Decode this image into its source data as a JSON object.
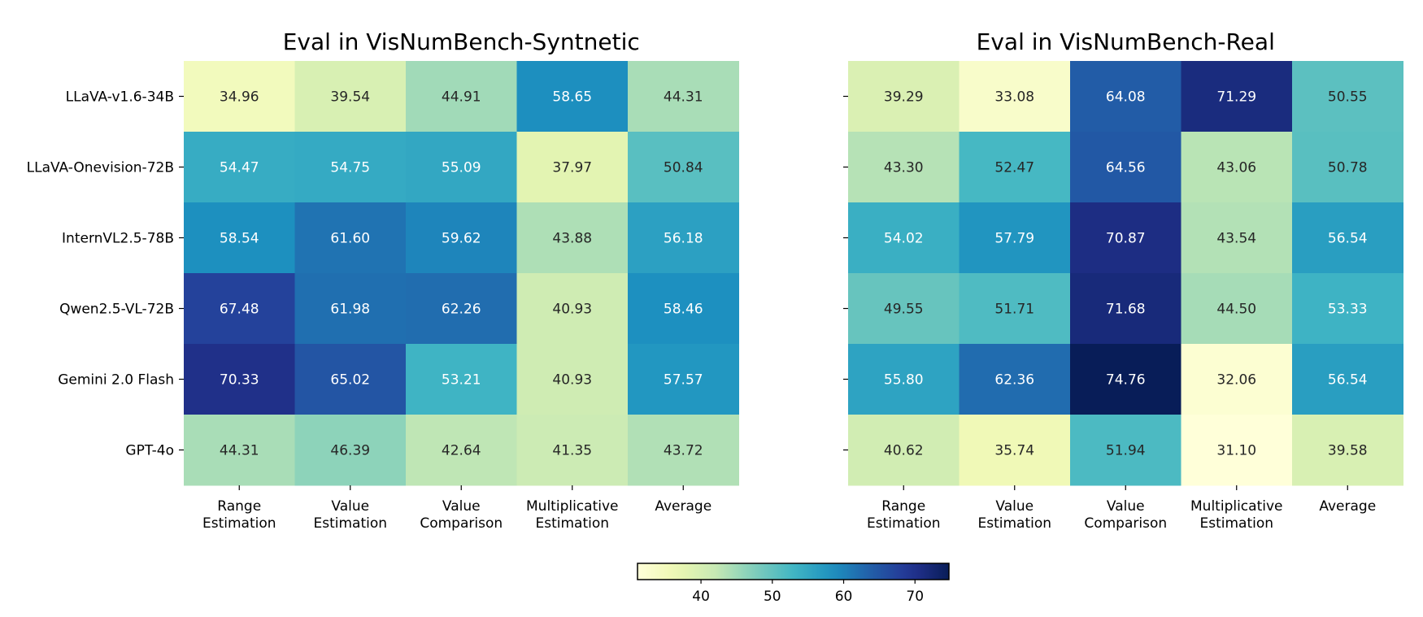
{
  "chart_data": [
    {
      "type": "heatmap",
      "title": "Eval in VisNumBench-Syntnetic",
      "rows": [
        "LLaVA-v1.6-34B",
        "LLaVA-Onevision-72B",
        "InternVL2.5-78B",
        "Qwen2.5-VL-72B",
        "Gemini 2.0 Flash",
        "GPT-4o"
      ],
      "columns": [
        [
          "Range",
          "Estimation"
        ],
        [
          "Value",
          "Estimation"
        ],
        [
          "Value",
          "Comparison"
        ],
        [
          "Multiplicative",
          "Estimation"
        ],
        [
          "Average"
        ]
      ],
      "values": [
        [
          34.96,
          39.54,
          44.91,
          58.65,
          44.31
        ],
        [
          54.47,
          54.75,
          55.09,
          37.97,
          50.84
        ],
        [
          58.54,
          61.6,
          59.62,
          43.88,
          56.18
        ],
        [
          67.48,
          61.98,
          62.26,
          40.93,
          58.46
        ],
        [
          70.33,
          65.02,
          53.21,
          40.93,
          57.57
        ],
        [
          44.31,
          46.39,
          42.64,
          41.35,
          43.72
        ]
      ],
      "show_row_labels": true
    },
    {
      "type": "heatmap",
      "title": "Eval in VisNumBench-Real",
      "rows": [
        "LLaVA-v1.6-34B",
        "LLaVA-Onevision-72B",
        "InternVL2.5-78B",
        "Qwen2.5-VL-72B",
        "Gemini 2.0 Flash",
        "GPT-4o"
      ],
      "columns": [
        [
          "Range",
          "Estimation"
        ],
        [
          "Value",
          "Estimation"
        ],
        [
          "Value",
          "Comparison"
        ],
        [
          "Multiplicative",
          "Estimation"
        ],
        [
          "Average"
        ]
      ],
      "values": [
        [
          39.29,
          33.08,
          64.08,
          71.29,
          50.55
        ],
        [
          43.3,
          52.47,
          64.56,
          43.06,
          50.78
        ],
        [
          54.02,
          57.79,
          70.87,
          43.54,
          56.54
        ],
        [
          49.55,
          51.71,
          71.68,
          44.5,
          53.33
        ],
        [
          55.8,
          62.36,
          74.76,
          32.06,
          56.54
        ],
        [
          40.62,
          35.74,
          51.94,
          31.1,
          39.58
        ]
      ],
      "show_row_labels": false
    }
  ],
  "colorbar": {
    "colormap": "YlGnBu",
    "vmin": 31.1,
    "vmax": 74.76,
    "ticks": [
      40,
      50,
      60,
      70
    ],
    "orientation": "horizontal",
    "placement": "bottom-center"
  }
}
